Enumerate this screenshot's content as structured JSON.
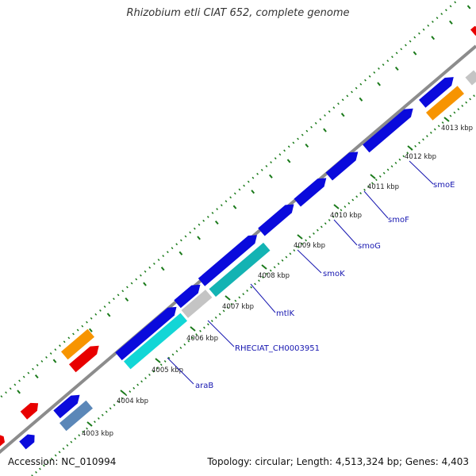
{
  "header": {
    "title": "Rhizobium etli CIAT 652, complete genome"
  },
  "footer": {
    "accession": "Accession: NC_010994",
    "summary": "Topology: circular; Length: 4,513,324 bp; Genes: 4,403"
  },
  "colors": {
    "backbone": "#8c8c8c",
    "gene_blue": "#0a0adc",
    "gene_cyan": "#12d6d6",
    "gene_teal": "#13b3b3",
    "gene_gray": "#c4c4c4",
    "gene_orange": "#f79400",
    "gene_red": "#e80000",
    "gene_steel": "#5b87b8",
    "tick_green": "#1a7a1a",
    "label_blue": "#1515b0"
  },
  "tick_labels": [
    "4003 kbp",
    "4004 kbp",
    "4005 kbp",
    "4006 kbp",
    "4007 kbp",
    "4008 kbp",
    "4009 kbp",
    "4010 kbp",
    "4011 kbp",
    "4012 kbp",
    "4013 kbp"
  ],
  "gene_labels": [
    "araB",
    "RHECIAT_CH0003951",
    "mtlK",
    "smoK",
    "smoG",
    "smoF",
    "smoE"
  ]
}
